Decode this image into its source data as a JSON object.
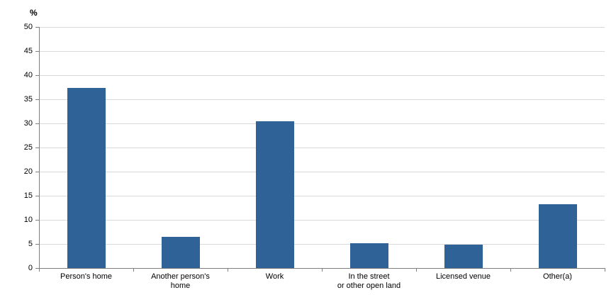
{
  "chart_data": {
    "type": "bar",
    "title": "",
    "ylabel": "%",
    "xlabel": "",
    "ylim": [
      0,
      50
    ],
    "ytick_step": 5,
    "grid": true,
    "legend": "none",
    "bar_color": "#2f6296",
    "axis_color": "#808080",
    "gridline_color": "#d9d9d9",
    "categories": [
      "Person's home",
      "Another person's\nhome",
      "Work",
      "In the street\nor other open land",
      "Licensed venue",
      "Other(a)"
    ],
    "values": [
      37.3,
      6.5,
      30.5,
      5.2,
      4.8,
      13.3
    ]
  }
}
